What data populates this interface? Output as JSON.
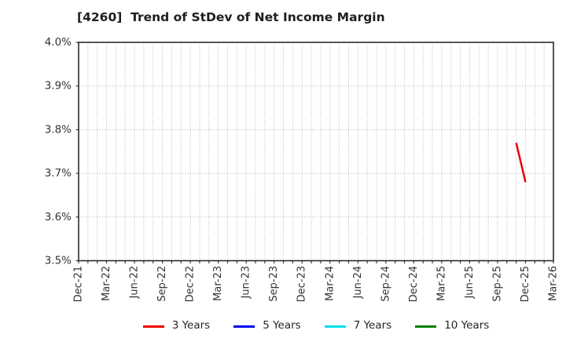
{
  "chart_data": {
    "type": "line",
    "title": "[4260]  Trend of StDev of Net Income Margin",
    "x_start": "Dec-21",
    "x_end": "Mar-26",
    "x_tick_labels": [
      "Dec-21",
      "Mar-22",
      "Jun-22",
      "Sep-22",
      "Dec-22",
      "Mar-23",
      "Jun-23",
      "Sep-23",
      "Dec-23",
      "Mar-24",
      "Jun-24",
      "Sep-24",
      "Dec-24",
      "Mar-25",
      "Jun-25",
      "Sep-25",
      "Dec-25",
      "Mar-26"
    ],
    "x_minor_grid": "monthly",
    "ylim": [
      3.5,
      4.0
    ],
    "y_tick_step": 0.1,
    "y_tick_labels": [
      "4.0%",
      "3.9%",
      "3.8%",
      "3.7%",
      "3.6%",
      "3.5%"
    ],
    "grid": true,
    "legend_position": "bottom-center",
    "series": [
      {
        "name": "3 Years",
        "color": "#ee0000",
        "points": [
          {
            "x": "Nov-25",
            "y": 3.77
          },
          {
            "x": "Dec-25",
            "y": 3.68
          }
        ]
      },
      {
        "name": "5 Years",
        "color": "#0000ee",
        "points": []
      },
      {
        "name": "7 Years",
        "color": "#00e0f0",
        "points": []
      },
      {
        "name": "10 Years",
        "color": "#008000",
        "points": []
      }
    ],
    "colors": {
      "grid": "#b0b0b0",
      "axis_border": "#2b2b2b",
      "tick_label": "#333333",
      "title": "#1f1f1f"
    }
  }
}
